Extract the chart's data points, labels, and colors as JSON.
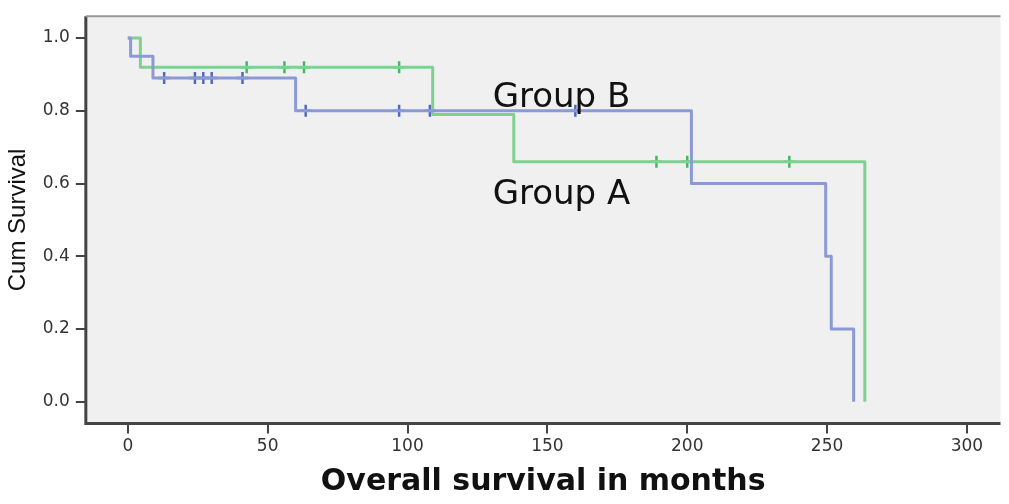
{
  "chart_data": {
    "type": "step",
    "xlabel": "Overall survival in months",
    "ylabel": "Cum Survival",
    "xlim": [
      -15,
      312
    ],
    "xticks": [
      0,
      50,
      100,
      150,
      200,
      250,
      300
    ],
    "ylim": [
      -0.06,
      1.06
    ],
    "yticks": [
      {
        "value": 0,
        "label": "0.0"
      },
      {
        "value": 0.2,
        "label": "0.2"
      },
      {
        "value": 0.4,
        "label": "0.4"
      },
      {
        "value": 0.6,
        "label": "0.6"
      },
      {
        "value": 0.8,
        "label": "0.8"
      },
      {
        "value": 1,
        "label": "1.0"
      }
    ],
    "legend": false,
    "series": [
      {
        "color": "#8a9ad4",
        "x": [
          0,
          1,
          9,
          60,
          201.5,
          249.5,
          251.5,
          259.5
        ],
        "values": [
          1.0,
          0.95,
          0.89,
          0.8,
          0.6,
          0.4,
          0.2,
          0.0
        ]
      },
      {
        "color": "#7fd191",
        "x": [
          0,
          4.5,
          109,
          138,
          263.5
        ],
        "values": [
          1.0,
          0.92,
          0.79,
          0.66,
          0.0
        ]
      },
      {
        "type": "scatter",
        "marker": "cross",
        "color": "#5068c0",
        "x": [
          13,
          24,
          27,
          30,
          41,
          63.6,
          97,
          108,
          160
        ],
        "values": [
          0.89,
          0.89,
          0.89,
          0.89,
          0.89,
          0.8,
          0.8,
          0.8,
          0.8
        ]
      },
      {
        "type": "scatter",
        "marker": "cross",
        "color": "#45b85e",
        "x": [
          42.5,
          56,
          63,
          97,
          189,
          200,
          236.5
        ],
        "values": [
          0.92,
          0.92,
          0.92,
          0.92,
          0.66,
          0.66,
          0.66
        ]
      }
    ],
    "annotations": [
      "Group B",
      "Group A"
    ]
  }
}
